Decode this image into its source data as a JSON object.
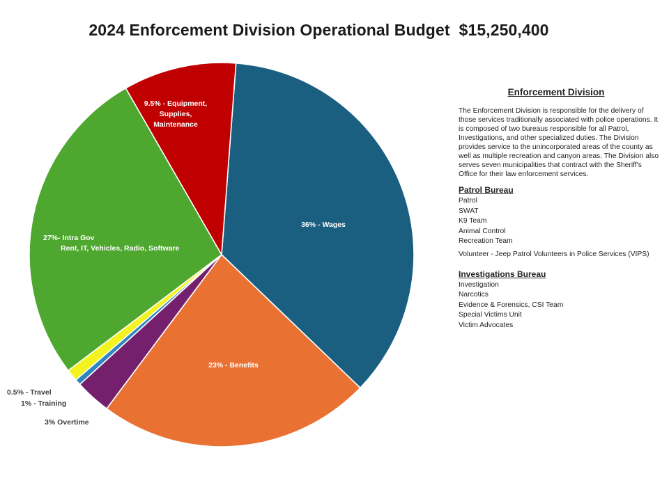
{
  "chart_data": {
    "type": "pie",
    "title": "2024 Enforcement Division Operational Budget  $15,250,400",
    "slices": [
      {
        "label": "36% - Wages",
        "value": 36,
        "color": "#1a5e80"
      },
      {
        "label": "23% - Benefits",
        "value": 23,
        "color": "#e97132"
      },
      {
        "label": "3% Overtime",
        "value": 3,
        "color": "#74206d"
      },
      {
        "label": "0.5% - Travel",
        "value": 0.5,
        "color": "#2e86c1"
      },
      {
        "label": "1% - Training",
        "value": 1,
        "color": "#f3f320"
      },
      {
        "label": "27%- Intra Gov\nRent, IT, Vehicles, Radio, Software",
        "value": 27,
        "color": "#4ea72e"
      },
      {
        "label": "9.5% - Equipment,\nSupplies,\nMaintenance",
        "value": 9.5,
        "color": "#c00000"
      }
    ]
  },
  "panel": {
    "title": "Enforcement Division",
    "description": "The Enforcement Division is responsible for the delivery of those services traditionally associated with police operations. It is composed of two bureaus responsible for all Patrol, Investigations, and other specialized duties. The Division provides service to the unincorporated areas of the county as well as multiple recreation and canyon areas. The Division also serves seven municipalities that contract with the Sheriff's Office for their law enforcement services.",
    "patrol": {
      "title": "Patrol Bureau",
      "items": [
        "Patrol",
        "SWAT",
        "K9 Team",
        "Animal Control",
        "Recreation Team",
        "Volunteer - Jeep Patrol Volunteers in Police Services (VIPS)"
      ]
    },
    "investigations": {
      "title": "Investigations Bureau",
      "items": [
        "Investigation",
        "Narcotics",
        "Evidence & Forensics, CSI Team",
        "Special Victims Unit",
        "Victim Advocates"
      ]
    }
  }
}
